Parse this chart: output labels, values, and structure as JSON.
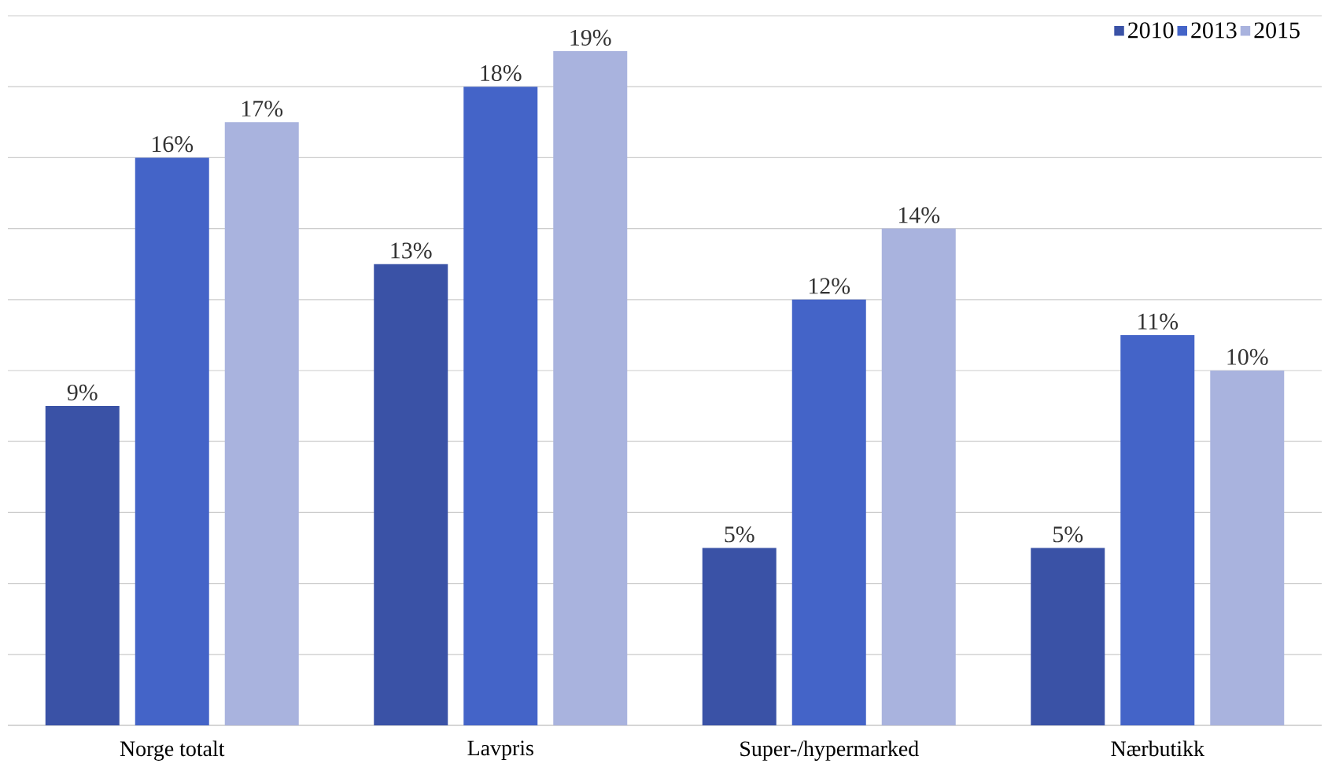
{
  "chart_data": {
    "type": "bar",
    "categories": [
      "Norge totalt",
      "Lavpris",
      "Super-/hypermarked",
      "Nærbutikk"
    ],
    "series": [
      {
        "name": "2010",
        "color": "#3a52a6",
        "values": [
          9,
          13,
          5,
          5
        ],
        "value_labels": [
          "9%",
          "13%",
          "5%",
          "5%"
        ]
      },
      {
        "name": "2013",
        "color": "#4464c8",
        "values": [
          16,
          18,
          12,
          11
        ],
        "value_labels": [
          "16%",
          "18%",
          "12%",
          "11%"
        ]
      },
      {
        "name": "2015",
        "color": "#a9b3de",
        "values": [
          17,
          19,
          14,
          10
        ],
        "value_labels": [
          "17%",
          "19%",
          "14%",
          "10%"
        ]
      }
    ],
    "ylim": [
      0,
      20
    ],
    "yticks": [
      {
        "value": 0,
        "label": null
      },
      {
        "value": 2,
        "label": null
      },
      {
        "value": 4,
        "label": null
      },
      {
        "value": 6,
        "label": null
      },
      {
        "value": 8,
        "label": null
      },
      {
        "value": 10,
        "label": null
      },
      {
        "value": 12,
        "label": null
      },
      {
        "value": 14,
        "label": null
      },
      {
        "value": 16,
        "label": null
      },
      {
        "value": 18,
        "label": null
      },
      {
        "value": 20,
        "label": null
      }
    ],
    "tick_labels": "x",
    "grid": "y",
    "legend": "top right"
  }
}
